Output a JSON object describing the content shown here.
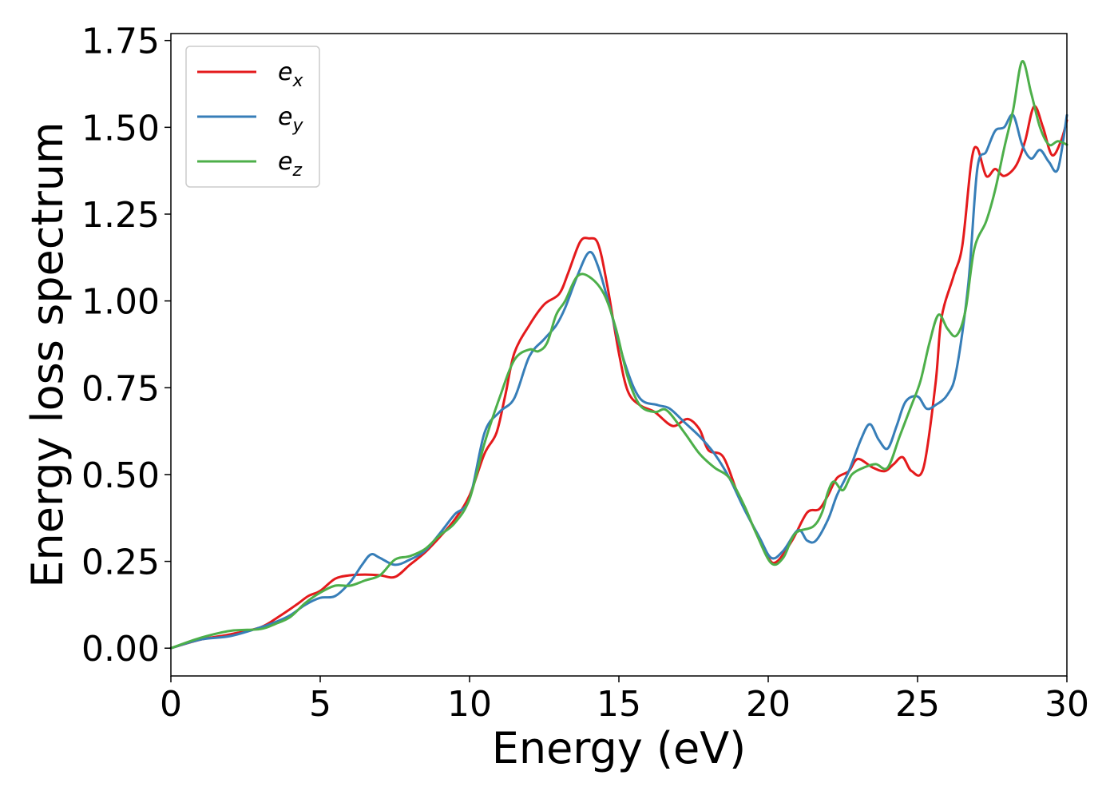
{
  "chart_data": {
    "type": "line",
    "title": "",
    "xlabel": "Energy (eV)",
    "ylabel": "Energy loss spectrum",
    "xlim": [
      0,
      30
    ],
    "ylim": [
      -0.08,
      1.77
    ],
    "xticks": [
      0,
      5,
      10,
      15,
      20,
      25,
      30
    ],
    "yticks": [
      0.0,
      0.25,
      0.5,
      0.75,
      1.0,
      1.25,
      1.5,
      1.75
    ],
    "ytick_labels": [
      "0.00",
      "0.25",
      "0.50",
      "0.75",
      "1.00",
      "1.25",
      "1.50",
      "1.75"
    ],
    "grid": false,
    "legend_position": "top-left",
    "series": [
      {
        "name": "e",
        "subscript": "x",
        "color": "#e41a1c",
        "points": [
          [
            0,
            0
          ],
          [
            1,
            0.025
          ],
          [
            2,
            0.04
          ],
          [
            3,
            0.06
          ],
          [
            3.6,
            0.09
          ],
          [
            4.2,
            0.125
          ],
          [
            4.6,
            0.15
          ],
          [
            5,
            0.165
          ],
          [
            5.5,
            0.2
          ],
          [
            6,
            0.21
          ],
          [
            6.5,
            0.212
          ],
          [
            7,
            0.21
          ],
          [
            7.5,
            0.205
          ],
          [
            8,
            0.24
          ],
          [
            8.5,
            0.275
          ],
          [
            9,
            0.32
          ],
          [
            9.5,
            0.37
          ],
          [
            10,
            0.44
          ],
          [
            10.5,
            0.56
          ],
          [
            10.9,
            0.62
          ],
          [
            11.2,
            0.73
          ],
          [
            11.5,
            0.85
          ],
          [
            12,
            0.93
          ],
          [
            12.5,
            0.99
          ],
          [
            13,
            1.02
          ],
          [
            13.3,
            1.08
          ],
          [
            13.7,
            1.17
          ],
          [
            14,
            1.18
          ],
          [
            14.3,
            1.165
          ],
          [
            14.6,
            1.05
          ],
          [
            15,
            0.85
          ],
          [
            15.3,
            0.74
          ],
          [
            15.7,
            0.7
          ],
          [
            16.2,
            0.68
          ],
          [
            16.8,
            0.64
          ],
          [
            17.3,
            0.66
          ],
          [
            17.7,
            0.63
          ],
          [
            18,
            0.57
          ],
          [
            18.5,
            0.55
          ],
          [
            19,
            0.44
          ],
          [
            19.5,
            0.35
          ],
          [
            20,
            0.26
          ],
          [
            20.3,
            0.25
          ],
          [
            20.8,
            0.31
          ],
          [
            21.3,
            0.39
          ],
          [
            21.7,
            0.4
          ],
          [
            22,
            0.44
          ],
          [
            22.3,
            0.49
          ],
          [
            22.7,
            0.51
          ],
          [
            23,
            0.545
          ],
          [
            23.5,
            0.52
          ],
          [
            23.9,
            0.51
          ],
          [
            24.2,
            0.53
          ],
          [
            24.5,
            0.55
          ],
          [
            24.8,
            0.51
          ],
          [
            25.2,
            0.52
          ],
          [
            25.6,
            0.76
          ],
          [
            25.8,
            0.95
          ],
          [
            26.2,
            1.07
          ],
          [
            26.5,
            1.16
          ],
          [
            26.8,
            1.4
          ],
          [
            27,
            1.44
          ],
          [
            27.3,
            1.36
          ],
          [
            27.6,
            1.38
          ],
          [
            27.9,
            1.36
          ],
          [
            28.3,
            1.39
          ],
          [
            28.6,
            1.46
          ],
          [
            28.9,
            1.56
          ],
          [
            29.2,
            1.5
          ],
          [
            29.5,
            1.42
          ],
          [
            29.8,
            1.46
          ],
          [
            30,
            1.52
          ]
        ]
      },
      {
        "name": "e",
        "subscript": "y",
        "color": "#377eb8",
        "points": [
          [
            0,
            0
          ],
          [
            1,
            0.025
          ],
          [
            2,
            0.035
          ],
          [
            3,
            0.06
          ],
          [
            3.5,
            0.075
          ],
          [
            4,
            0.095
          ],
          [
            4.5,
            0.125
          ],
          [
            5,
            0.145
          ],
          [
            5.5,
            0.15
          ],
          [
            6,
            0.19
          ],
          [
            6.4,
            0.24
          ],
          [
            6.7,
            0.27
          ],
          [
            7,
            0.26
          ],
          [
            7.5,
            0.24
          ],
          [
            8,
            0.255
          ],
          [
            8.5,
            0.28
          ],
          [
            9,
            0.33
          ],
          [
            9.5,
            0.385
          ],
          [
            10,
            0.43
          ],
          [
            10.5,
            0.62
          ],
          [
            11,
            0.68
          ],
          [
            11.5,
            0.72
          ],
          [
            12,
            0.84
          ],
          [
            12.5,
            0.89
          ],
          [
            12.9,
            0.93
          ],
          [
            13.2,
            0.98
          ],
          [
            13.6,
            1.07
          ],
          [
            14,
            1.14
          ],
          [
            14.3,
            1.1
          ],
          [
            14.7,
            0.98
          ],
          [
            15.2,
            0.82
          ],
          [
            15.7,
            0.72
          ],
          [
            16.3,
            0.7
          ],
          [
            16.7,
            0.69
          ],
          [
            17.2,
            0.65
          ],
          [
            17.7,
            0.61
          ],
          [
            18.2,
            0.56
          ],
          [
            18.7,
            0.49
          ],
          [
            19.2,
            0.4
          ],
          [
            19.7,
            0.32
          ],
          [
            20.1,
            0.26
          ],
          [
            20.5,
            0.28
          ],
          [
            21,
            0.34
          ],
          [
            21.3,
            0.31
          ],
          [
            21.6,
            0.31
          ],
          [
            22,
            0.37
          ],
          [
            22.3,
            0.44
          ],
          [
            22.7,
            0.51
          ],
          [
            23.1,
            0.6
          ],
          [
            23.4,
            0.645
          ],
          [
            23.7,
            0.6
          ],
          [
            24,
            0.575
          ],
          [
            24.3,
            0.64
          ],
          [
            24.6,
            0.71
          ],
          [
            25,
            0.725
          ],
          [
            25.3,
            0.69
          ],
          [
            25.6,
            0.7
          ],
          [
            26,
            0.73
          ],
          [
            26.3,
            0.8
          ],
          [
            26.7,
            1.05
          ],
          [
            27,
            1.38
          ],
          [
            27.3,
            1.43
          ],
          [
            27.6,
            1.49
          ],
          [
            27.9,
            1.5
          ],
          [
            28.2,
            1.535
          ],
          [
            28.5,
            1.45
          ],
          [
            28.8,
            1.41
          ],
          [
            29.1,
            1.435
          ],
          [
            29.4,
            1.4
          ],
          [
            29.7,
            1.38
          ],
          [
            30,
            1.535
          ]
        ]
      },
      {
        "name": "e",
        "subscript": "z",
        "color": "#4daf4a",
        "points": [
          [
            0,
            0
          ],
          [
            1,
            0.03
          ],
          [
            2,
            0.05
          ],
          [
            3,
            0.055
          ],
          [
            3.5,
            0.07
          ],
          [
            4,
            0.09
          ],
          [
            4.5,
            0.13
          ],
          [
            5,
            0.16
          ],
          [
            5.5,
            0.18
          ],
          [
            6,
            0.18
          ],
          [
            6.5,
            0.195
          ],
          [
            7,
            0.21
          ],
          [
            7.5,
            0.255
          ],
          [
            8,
            0.265
          ],
          [
            8.5,
            0.285
          ],
          [
            9,
            0.325
          ],
          [
            9.5,
            0.36
          ],
          [
            10,
            0.43
          ],
          [
            10.5,
            0.59
          ],
          [
            11,
            0.72
          ],
          [
            11.5,
            0.83
          ],
          [
            12,
            0.86
          ],
          [
            12.3,
            0.855
          ],
          [
            12.6,
            0.88
          ],
          [
            12.9,
            0.96
          ],
          [
            13.2,
            1.0
          ],
          [
            13.6,
            1.07
          ],
          [
            14,
            1.07
          ],
          [
            14.5,
            1.02
          ],
          [
            14.9,
            0.92
          ],
          [
            15.3,
            0.78
          ],
          [
            15.7,
            0.7
          ],
          [
            16.2,
            0.68
          ],
          [
            16.6,
            0.685
          ],
          [
            17.2,
            0.62
          ],
          [
            17.7,
            0.56
          ],
          [
            18.2,
            0.52
          ],
          [
            18.7,
            0.49
          ],
          [
            19.2,
            0.41
          ],
          [
            19.6,
            0.33
          ],
          [
            20.1,
            0.245
          ],
          [
            20.5,
            0.26
          ],
          [
            20.9,
            0.33
          ],
          [
            21.5,
            0.35
          ],
          [
            21.8,
            0.39
          ],
          [
            22,
            0.45
          ],
          [
            22.2,
            0.48
          ],
          [
            22.5,
            0.455
          ],
          [
            22.8,
            0.5
          ],
          [
            23.2,
            0.52
          ],
          [
            23.6,
            0.53
          ],
          [
            24,
            0.52
          ],
          [
            24.4,
            0.61
          ],
          [
            24.8,
            0.7
          ],
          [
            25.1,
            0.77
          ],
          [
            25.4,
            0.88
          ],
          [
            25.7,
            0.96
          ],
          [
            26,
            0.92
          ],
          [
            26.3,
            0.9
          ],
          [
            26.6,
            0.97
          ],
          [
            26.9,
            1.15
          ],
          [
            27.3,
            1.23
          ],
          [
            27.6,
            1.32
          ],
          [
            27.9,
            1.44
          ],
          [
            28.2,
            1.55
          ],
          [
            28.5,
            1.69
          ],
          [
            28.8,
            1.6
          ],
          [
            29.1,
            1.5
          ],
          [
            29.4,
            1.45
          ],
          [
            29.7,
            1.46
          ],
          [
            30,
            1.45
          ]
        ]
      }
    ]
  }
}
